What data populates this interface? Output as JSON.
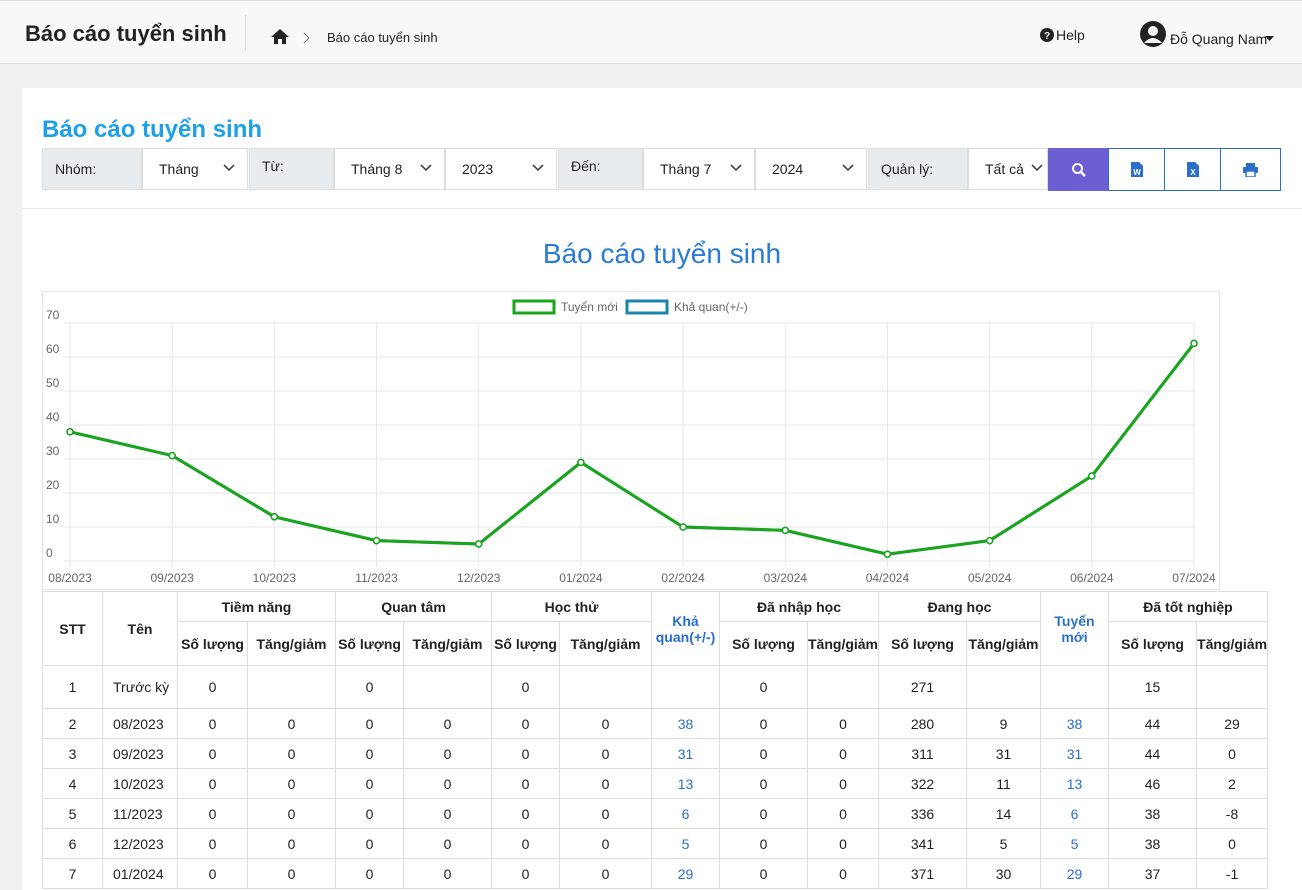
{
  "header": {
    "title": "Báo cáo tuyển sinh",
    "breadcrumb": "Báo cáo tuyển sinh",
    "help": "Help",
    "user": "Đỗ Quang Nam"
  },
  "filters": {
    "title": "Báo cáo tuyển sinh",
    "group_label": "Nhóm:",
    "group": "Tháng",
    "from_label": "Từ:",
    "from_month": "Tháng 8",
    "from_year": "2023",
    "to_label": "Đến:",
    "to_month": "Tháng 7",
    "to_year": "2024",
    "manager_label": "Quản lý:",
    "manager": "Tất cả"
  },
  "chart": {
    "type": "line",
    "title": "Báo cáo tuyển sinh",
    "x": [
      "08/2023",
      "09/2023",
      "10/2023",
      "11/2023",
      "12/2023",
      "01/2024",
      "02/2024",
      "03/2024",
      "04/2024",
      "05/2024",
      "06/2024",
      "07/2024"
    ],
    "series": [
      {
        "name": "Tuyển mới",
        "color": "#1aa51a",
        "values": [
          38,
          31,
          13,
          6,
          5,
          29,
          10,
          9,
          2,
          6,
          25,
          64
        ]
      },
      {
        "name": "Khả quan(+/-)",
        "color": "#1a86aa",
        "values": [
          38,
          31,
          13,
          6,
          5,
          29,
          10,
          9,
          2,
          6,
          25,
          64
        ]
      }
    ],
    "ylim": [
      0,
      70
    ],
    "yticks": [
      0,
      10,
      20,
      30,
      40,
      50,
      60,
      70
    ],
    "grid": true
  },
  "table": {
    "header": [
      "STT",
      "Tên",
      "Tiềm năng",
      "Quan tâm",
      "Học thử",
      "Khả quan(+/-)",
      "Đã nhập học",
      "Đang học",
      "Tuyển mới",
      "Đã tốt nghiệp"
    ],
    "sub": [
      "Số lượng",
      "Tăng/giảm"
    ],
    "rows": [
      [
        1,
        "Trước kỳ",
        0,
        null,
        0,
        null,
        0,
        null,
        null,
        0,
        null,
        271,
        null,
        null,
        15,
        null
      ],
      [
        2,
        "08/2023",
        0,
        0,
        0,
        0,
        0,
        0,
        38,
        0,
        0,
        280,
        9,
        38,
        44,
        29
      ],
      [
        3,
        "09/2023",
        0,
        0,
        0,
        0,
        0,
        0,
        31,
        0,
        0,
        311,
        31,
        31,
        44,
        0
      ],
      [
        4,
        "10/2023",
        0,
        0,
        0,
        0,
        0,
        0,
        13,
        0,
        0,
        322,
        11,
        13,
        46,
        2
      ],
      [
        5,
        "11/2023",
        0,
        0,
        0,
        0,
        0,
        0,
        6,
        0,
        0,
        336,
        14,
        6,
        38,
        -8
      ],
      [
        6,
        "12/2023",
        0,
        0,
        0,
        0,
        0,
        0,
        5,
        0,
        0,
        341,
        5,
        5,
        38,
        0
      ],
      [
        7,
        "01/2024",
        0,
        0,
        0,
        0,
        0,
        0,
        29,
        0,
        0,
        371,
        30,
        29,
        37,
        -1
      ]
    ]
  }
}
